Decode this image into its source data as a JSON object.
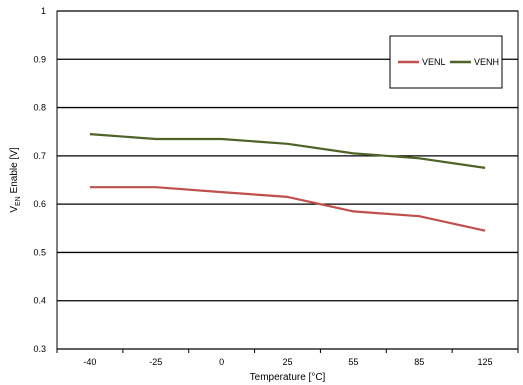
{
  "chart_data": {
    "type": "line",
    "categories": [
      "-40",
      "-25",
      "0",
      "25",
      "55",
      "85",
      "125"
    ],
    "series": [
      {
        "name": "VENL",
        "color": "#c0504d",
        "values": [
          0.635,
          0.635,
          0.625,
          0.615,
          0.585,
          0.575,
          0.545
        ]
      },
      {
        "name": "VENH",
        "color": "#4f6228",
        "values": [
          0.745,
          0.735,
          0.735,
          0.725,
          0.705,
          0.695,
          0.675
        ]
      }
    ],
    "title": "",
    "xlabel": "Temperature [°C]",
    "ylabel": {
      "main": "V",
      "sub": "EN",
      "rest": " Enable  [V]"
    },
    "ylim": [
      0.3,
      1
    ],
    "yticks": [
      "0.3",
      "0.4",
      "0.5",
      "0.6",
      "0.7",
      "0.8",
      "0.9",
      "1"
    ],
    "grid": true,
    "legend": "top-right"
  }
}
